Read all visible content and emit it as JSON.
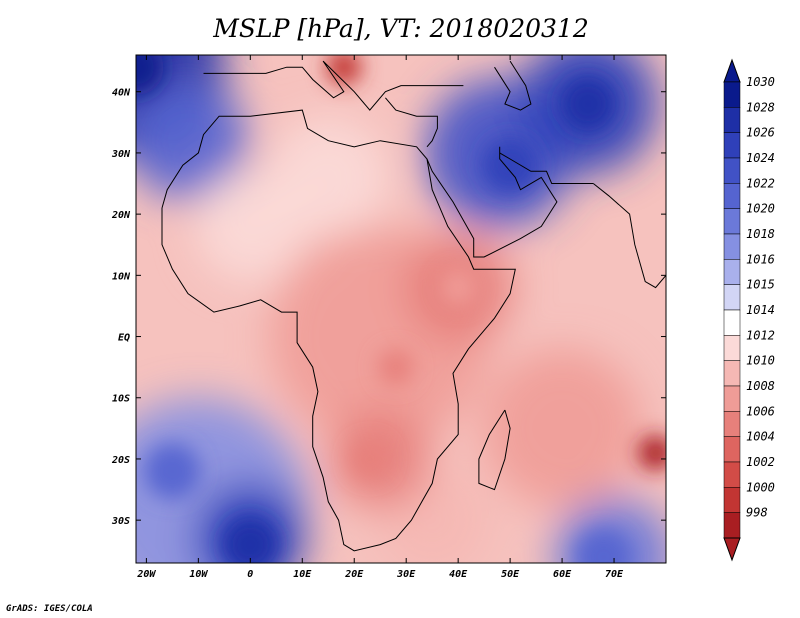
{
  "title": "MSLP [hPa], VT: 2018020312",
  "credit": "GrADS: IGES/COLA",
  "map": {
    "lon_range": [
      -22,
      80
    ],
    "lat_range": [
      -37,
      46
    ],
    "lon_ticks": [
      {
        "value": -20,
        "label": "20W"
      },
      {
        "value": -10,
        "label": "10W"
      },
      {
        "value": 0,
        "label": "0"
      },
      {
        "value": 10,
        "label": "10E"
      },
      {
        "value": 20,
        "label": "20E"
      },
      {
        "value": 30,
        "label": "30E"
      },
      {
        "value": 40,
        "label": "40E"
      },
      {
        "value": 50,
        "label": "50E"
      },
      {
        "value": 60,
        "label": "60E"
      },
      {
        "value": 70,
        "label": "70E"
      }
    ],
    "lat_ticks": [
      {
        "value": 40,
        "label": "40N"
      },
      {
        "value": 30,
        "label": "30N"
      },
      {
        "value": 20,
        "label": "20N"
      },
      {
        "value": 10,
        "label": "10N"
      },
      {
        "value": 0,
        "label": "EQ"
      },
      {
        "value": -10,
        "label": "10S"
      },
      {
        "value": -20,
        "label": "20S"
      },
      {
        "value": -30,
        "label": "30S"
      }
    ],
    "pressure_features": [
      {
        "type": "high",
        "lon": -22,
        "lat": 44,
        "hPa": 1030
      },
      {
        "type": "high",
        "lon": 50,
        "lat": 28,
        "hPa": 1025
      },
      {
        "type": "high",
        "lon": 65,
        "lat": 38,
        "hPa": 1027
      },
      {
        "type": "high",
        "lon": 0,
        "lat": -34,
        "hPa": 1028
      },
      {
        "type": "high",
        "lon": -15,
        "lat": -22,
        "hPa": 1021
      },
      {
        "type": "high",
        "lon": 68,
        "lat": -36,
        "hPa": 1022
      },
      {
        "type": "low",
        "lon": 18,
        "lat": 44,
        "hPa": 999
      },
      {
        "type": "low",
        "lon": 78,
        "lat": -19,
        "hPa": 998
      },
      {
        "type": "low",
        "lon": 23,
        "lat": -20,
        "hPa": 1005
      },
      {
        "type": "low",
        "lon": 28,
        "lat": -5,
        "hPa": 1006
      },
      {
        "type": "low",
        "lon": 40,
        "lat": 8,
        "hPa": 1007
      }
    ]
  },
  "colorbar": {
    "levels": [
      {
        "label": "1030",
        "color": "#0a1a8c"
      },
      {
        "label": "1028",
        "color": "#1e2fa6"
      },
      {
        "label": "1026",
        "color": "#2f40b9"
      },
      {
        "label": "1024",
        "color": "#4152c6"
      },
      {
        "label": "1022",
        "color": "#5564d0"
      },
      {
        "label": "1020",
        "color": "#6b79d9"
      },
      {
        "label": "1018",
        "color": "#8590e2"
      },
      {
        "label": "1016",
        "color": "#a9b0ec"
      },
      {
        "label": "1015",
        "color": "#d2d5f5"
      },
      {
        "label": "1014",
        "color": "#ffffff"
      },
      {
        "label": "1012",
        "color": "#fbdad8"
      },
      {
        "label": "1010",
        "color": "#f5b8b4"
      },
      {
        "label": "1008",
        "color": "#ef9c97"
      },
      {
        "label": "1006",
        "color": "#e7807b"
      },
      {
        "label": "1004",
        "color": "#de6560"
      },
      {
        "label": "1002",
        "color": "#d24c47"
      },
      {
        "label": "1000",
        "color": "#c23533"
      },
      {
        "label": "998",
        "color": "#a91e22"
      }
    ]
  }
}
